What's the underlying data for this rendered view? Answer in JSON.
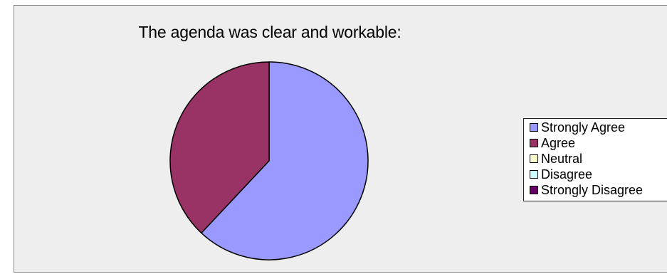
{
  "chart_data": {
    "type": "pie",
    "title": "The agenda was clear and workable:",
    "categories": [
      "Strongly Agree",
      "Agree",
      "Neutral",
      "Disagree",
      "Strongly Disagree"
    ],
    "values": [
      62,
      38,
      0,
      0,
      0
    ],
    "colors": [
      "#9999ff",
      "#993366",
      "#ffffcc",
      "#ccffff",
      "#660066"
    ],
    "legend": "right"
  }
}
